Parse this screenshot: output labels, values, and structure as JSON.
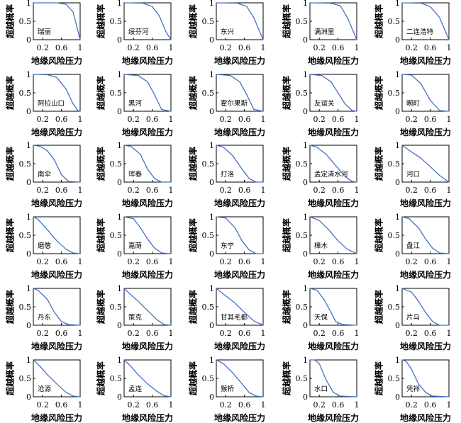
{
  "figure": {
    "xlabel": "地缘风险压力",
    "ylabel": "超越概率",
    "series_color": "#4472c4"
  },
  "chart_data": [
    {
      "type": "line",
      "title": "瑞丽",
      "xlabel": "地缘风险压力",
      "ylabel": "超越概率",
      "xlim": [
        0,
        1.0
      ],
      "ylim": [
        0,
        1.0
      ],
      "xticks": [
        0.2,
        0.6,
        1.0
      ],
      "yticks": [
        0,
        0.5,
        1.0
      ],
      "series": [
        {
          "x": [
            0,
            0.5,
            0.7,
            0.85,
            1.0
          ],
          "y": [
            1.0,
            1.0,
            0.96,
            0.75,
            0.0
          ]
        }
      ]
    },
    {
      "type": "line",
      "title": "绥芬河",
      "xlabel": "地缘风险压力",
      "ylabel": "超越概率",
      "xlim": [
        0,
        1.0
      ],
      "ylim": [
        0,
        1.0
      ],
      "xticks": [
        0.2,
        0.6,
        1.0
      ],
      "yticks": [
        0,
        0.5,
        1.0
      ],
      "series": [
        {
          "x": [
            0,
            0.4,
            0.6,
            0.75,
            0.9,
            1.0
          ],
          "y": [
            1.0,
            0.99,
            0.9,
            0.65,
            0.2,
            0.0
          ]
        }
      ]
    },
    {
      "type": "line",
      "title": "东兴",
      "xlabel": "地缘风险压力",
      "ylabel": "超越概率",
      "xlim": [
        0,
        1.0
      ],
      "ylim": [
        0,
        1.0
      ],
      "xticks": [
        0.2,
        0.6,
        1.0
      ],
      "yticks": [
        0,
        0.5,
        1.0
      ],
      "series": [
        {
          "x": [
            0,
            0.45,
            0.65,
            0.8,
            1.0
          ],
          "y": [
            1.0,
            0.99,
            0.9,
            0.6,
            0.0
          ]
        }
      ]
    },
    {
      "type": "line",
      "title": "满洲里",
      "xlabel": "地缘风险压力",
      "ylabel": "超越概率",
      "xlim": [
        0,
        1.0
      ],
      "ylim": [
        0,
        1.0
      ],
      "xticks": [
        0.2,
        0.6,
        1.0
      ],
      "yticks": [
        0,
        0.5,
        1.0
      ],
      "series": [
        {
          "x": [
            0,
            0.45,
            0.65,
            0.8,
            1.0
          ],
          "y": [
            1.0,
            0.99,
            0.92,
            0.6,
            0.0
          ]
        }
      ]
    },
    {
      "type": "line",
      "title": "二连浩特",
      "xlabel": "地缘风险压力",
      "ylabel": "超越概率",
      "xlim": [
        0,
        1.0
      ],
      "ylim": [
        0,
        1.0
      ],
      "xticks": [
        0.2,
        0.6,
        1.0
      ],
      "yticks": [
        0,
        0.5,
        1.0
      ],
      "series": [
        {
          "x": [
            0,
            0.4,
            0.6,
            0.8,
            1.0
          ],
          "y": [
            1.0,
            0.99,
            0.9,
            0.6,
            0.0
          ]
        }
      ]
    },
    {
      "type": "line",
      "title": "阿拉山口",
      "xlabel": "地缘风险压力",
      "ylabel": "超越概率",
      "xlim": [
        0,
        1.0
      ],
      "ylim": [
        0,
        1.0
      ],
      "xticks": [
        0.2,
        0.6,
        1.0
      ],
      "yticks": [
        0,
        0.5,
        1.0
      ],
      "series": [
        {
          "x": [
            0,
            0.3,
            0.5,
            0.7,
            0.85,
            0.95,
            1.0
          ],
          "y": [
            1.0,
            0.99,
            0.92,
            0.6,
            0.2,
            0.02,
            0.0
          ]
        }
      ]
    },
    {
      "type": "line",
      "title": "黑河",
      "xlabel": "地缘风险压力",
      "ylabel": "超越概率",
      "xlim": [
        0,
        1.0
      ],
      "ylim": [
        0,
        1.0
      ],
      "xticks": [
        0.2,
        0.6,
        1.0
      ],
      "yticks": [
        0,
        0.5,
        1.0
      ],
      "series": [
        {
          "x": [
            0,
            0.3,
            0.5,
            0.65,
            0.8,
            1.0
          ],
          "y": [
            1.0,
            0.97,
            0.8,
            0.45,
            0.05,
            0.0
          ]
        }
      ]
    },
    {
      "type": "line",
      "title": "霍尔果斯",
      "xlabel": "地缘风险压力",
      "ylabel": "超越概率",
      "xlim": [
        0,
        1.0
      ],
      "ylim": [
        0,
        1.0
      ],
      "xticks": [
        0.2,
        0.6,
        1.0
      ],
      "yticks": [
        0,
        0.5,
        1.0
      ],
      "series": [
        {
          "x": [
            0,
            0.3,
            0.5,
            0.65,
            0.8,
            1.0
          ],
          "y": [
            1.0,
            0.97,
            0.8,
            0.45,
            0.05,
            0.0
          ]
        }
      ]
    },
    {
      "type": "line",
      "title": "友谊关",
      "xlabel": "地缘风险压力",
      "ylabel": "超越概率",
      "xlim": [
        0,
        1.0
      ],
      "ylim": [
        0,
        1.0
      ],
      "xticks": [
        0.2,
        0.6,
        1.0
      ],
      "yticks": [
        0,
        0.5,
        1.0
      ],
      "series": [
        {
          "x": [
            0,
            0.25,
            0.45,
            0.6,
            0.75,
            0.9,
            1.0
          ],
          "y": [
            1.0,
            0.97,
            0.8,
            0.5,
            0.2,
            0.02,
            0.0
          ]
        }
      ]
    },
    {
      "type": "line",
      "title": "畹町",
      "xlabel": "地缘风险压力",
      "ylabel": "超越概率",
      "xlim": [
        0,
        1.0
      ],
      "ylim": [
        0,
        1.0
      ],
      "xticks": [
        0.2,
        0.6,
        1.0
      ],
      "yticks": [
        0,
        0.5,
        1.0
      ],
      "series": [
        {
          "x": [
            0,
            0.2,
            0.4,
            0.6,
            0.8,
            1.0
          ],
          "y": [
            1.0,
            0.98,
            0.75,
            0.3,
            0.02,
            0.0
          ]
        }
      ]
    },
    {
      "type": "line",
      "title": "南伞",
      "xlabel": "地缘风险压力",
      "ylabel": "超越概率",
      "xlim": [
        0,
        1.0
      ],
      "ylim": [
        0,
        1.0
      ],
      "xticks": [
        0.2,
        0.6,
        1.0
      ],
      "yticks": [
        0,
        0.5,
        1.0
      ],
      "series": [
        {
          "x": [
            0,
            0.15,
            0.3,
            0.45,
            0.6,
            0.75,
            1.0
          ],
          "y": [
            1.0,
            0.97,
            0.85,
            0.6,
            0.2,
            0.02,
            0.0
          ]
        }
      ]
    },
    {
      "type": "line",
      "title": "珲春",
      "xlabel": "地缘风险压力",
      "ylabel": "超越概率",
      "xlim": [
        0,
        1.0
      ],
      "ylim": [
        0,
        1.0
      ],
      "xticks": [
        0.2,
        0.6,
        1.0
      ],
      "yticks": [
        0,
        0.5,
        1.0
      ],
      "series": [
        {
          "x": [
            0,
            0.15,
            0.35,
            0.5,
            0.65,
            0.8,
            1.0
          ],
          "y": [
            1.0,
            0.97,
            0.75,
            0.35,
            0.1,
            0.0,
            0.0
          ]
        }
      ]
    },
    {
      "type": "line",
      "title": "打洛",
      "xlabel": "地缘风险压力",
      "ylabel": "超越概率",
      "xlim": [
        0,
        1.0
      ],
      "ylim": [
        0,
        1.0
      ],
      "xticks": [
        0.2,
        0.6,
        1.0
      ],
      "yticks": [
        0,
        0.5,
        1.0
      ],
      "series": [
        {
          "x": [
            0,
            0.15,
            0.35,
            0.55,
            0.7,
            0.85,
            1.0
          ],
          "y": [
            1.0,
            0.95,
            0.72,
            0.35,
            0.1,
            0.0,
            0.0
          ]
        }
      ]
    },
    {
      "type": "line",
      "title": "孟定清水河",
      "xlabel": "地缘风险压力",
      "ylabel": "超越概率",
      "xlim": [
        0,
        1.0
      ],
      "ylim": [
        0,
        1.0
      ],
      "xticks": [
        0.2,
        0.6,
        1.0
      ],
      "yticks": [
        0,
        0.5,
        1.0
      ],
      "series": [
        {
          "x": [
            0,
            0.15,
            0.35,
            0.55,
            0.75,
            0.9,
            1.0
          ],
          "y": [
            1.0,
            0.95,
            0.75,
            0.45,
            0.15,
            0.02,
            0.0
          ]
        }
      ]
    },
    {
      "type": "line",
      "title": "河口",
      "xlabel": "地缘风险压力",
      "ylabel": "超越概率",
      "xlim": [
        0,
        1.0
      ],
      "ylim": [
        0,
        1.0
      ],
      "xticks": [
        0.2,
        0.6,
        1.0
      ],
      "yticks": [
        0,
        0.5,
        1.0
      ],
      "series": [
        {
          "x": [
            0,
            0.2,
            0.4,
            0.6,
            0.8,
            1.0
          ],
          "y": [
            1.0,
            0.82,
            0.65,
            0.42,
            0.18,
            0.0
          ]
        }
      ]
    },
    {
      "type": "line",
      "title": "磨憨",
      "xlabel": "地缘风险压力",
      "ylabel": "超越概率",
      "xlim": [
        0,
        1.0
      ],
      "ylim": [
        0,
        1.0
      ],
      "xticks": [
        0.2,
        0.6,
        1.0
      ],
      "yticks": [
        0,
        0.5,
        1.0
      ],
      "series": [
        {
          "x": [
            0,
            0.1,
            0.3,
            0.5,
            0.7,
            0.85,
            1.0
          ],
          "y": [
            1.0,
            0.93,
            0.65,
            0.35,
            0.12,
            0.02,
            0.0
          ]
        }
      ]
    },
    {
      "type": "line",
      "title": "嘉荫",
      "xlabel": "地缘风险压力",
      "ylabel": "超越概率",
      "xlim": [
        0,
        1.0
      ],
      "ylim": [
        0,
        1.0
      ],
      "xticks": [
        0.2,
        0.6,
        1.0
      ],
      "yticks": [
        0,
        0.5,
        1.0
      ],
      "series": [
        {
          "x": [
            0,
            0.2,
            0.35,
            0.5,
            0.65,
            0.8,
            1.0
          ],
          "y": [
            1.0,
            0.95,
            0.7,
            0.4,
            0.15,
            0.02,
            0.0
          ]
        }
      ]
    },
    {
      "type": "line",
      "title": "东宁",
      "xlabel": "地缘风险压力",
      "ylabel": "超越概率",
      "xlim": [
        0,
        1.0
      ],
      "ylim": [
        0,
        1.0
      ],
      "xticks": [
        0.2,
        0.6,
        1.0
      ],
      "yticks": [
        0,
        0.5,
        1.0
      ],
      "series": [
        {
          "x": [
            0,
            0.2,
            0.4,
            0.55,
            0.7,
            0.85,
            1.0
          ],
          "y": [
            1.0,
            0.97,
            0.7,
            0.35,
            0.1,
            0.0,
            0.0
          ]
        }
      ]
    },
    {
      "type": "line",
      "title": "樟木",
      "xlabel": "地缘风险压力",
      "ylabel": "超越概率",
      "xlim": [
        0,
        1.0
      ],
      "ylim": [
        0,
        1.0
      ],
      "xticks": [
        0.2,
        0.6,
        1.0
      ],
      "yticks": [
        0,
        0.5,
        1.0
      ],
      "series": [
        {
          "x": [
            0,
            0.2,
            0.4,
            0.6,
            0.8,
            1.0
          ],
          "y": [
            1.0,
            0.9,
            0.65,
            0.35,
            0.12,
            0.0
          ]
        }
      ]
    },
    {
      "type": "line",
      "title": "盘江",
      "xlabel": "地缘风险压力",
      "ylabel": "超越概率",
      "xlim": [
        0,
        1.0
      ],
      "ylim": [
        0,
        1.0
      ],
      "xticks": [
        0.2,
        0.6,
        1.0
      ],
      "yticks": [
        0,
        0.5,
        1.0
      ],
      "series": [
        {
          "x": [
            0,
            0.15,
            0.35,
            0.5,
            0.65,
            0.8,
            1.0
          ],
          "y": [
            1.0,
            0.95,
            0.7,
            0.4,
            0.15,
            0.02,
            0.0
          ]
        }
      ]
    },
    {
      "type": "line",
      "title": "丹东",
      "xlabel": "地缘风险压力",
      "ylabel": "超越概率",
      "xlim": [
        0,
        1.0
      ],
      "ylim": [
        0,
        1.0
      ],
      "xticks": [
        0.2,
        0.6,
        1.0
      ],
      "yticks": [
        0,
        0.5,
        1.0
      ],
      "series": [
        {
          "x": [
            0,
            0.1,
            0.3,
            0.45,
            0.6,
            0.75,
            1.0
          ],
          "y": [
            1.0,
            0.95,
            0.7,
            0.35,
            0.1,
            0.02,
            0.0
          ]
        }
      ]
    },
    {
      "type": "line",
      "title": "策克",
      "xlabel": "地缘风险压力",
      "ylabel": "超越概率",
      "xlim": [
        0,
        1.0
      ],
      "ylim": [
        0,
        1.0
      ],
      "xticks": [
        0.2,
        0.6,
        1.0
      ],
      "yticks": [
        0,
        0.5,
        1.0
      ],
      "series": [
        {
          "x": [
            0,
            0.15,
            0.3,
            0.5,
            0.7,
            0.85,
            1.0
          ],
          "y": [
            1.0,
            0.82,
            0.65,
            0.4,
            0.15,
            0.02,
            0.0
          ]
        }
      ]
    },
    {
      "type": "line",
      "title": "甘其毛都",
      "xlabel": "地缘风险压力",
      "ylabel": "超越概率",
      "xlim": [
        0,
        1.0
      ],
      "ylim": [
        0,
        1.0
      ],
      "xticks": [
        0.2,
        0.6,
        1.0
      ],
      "yticks": [
        0,
        0.5,
        1.0
      ],
      "series": [
        {
          "x": [
            0,
            0.2,
            0.4,
            0.6,
            0.8,
            1.0
          ],
          "y": [
            1.0,
            0.8,
            0.6,
            0.35,
            0.12,
            0.0
          ]
        }
      ]
    },
    {
      "type": "line",
      "title": "天保",
      "xlabel": "地缘风险压力",
      "ylabel": "超越概率",
      "xlim": [
        0,
        1.0
      ],
      "ylim": [
        0,
        1.0
      ],
      "xticks": [
        0.2,
        0.6,
        1.0
      ],
      "yticks": [
        0,
        0.5,
        1.0
      ],
      "series": [
        {
          "x": [
            0,
            0.15,
            0.3,
            0.45,
            0.55,
            0.7,
            1.0
          ],
          "y": [
            1.0,
            0.95,
            0.7,
            0.35,
            0.1,
            0.02,
            0.0
          ]
        }
      ]
    },
    {
      "type": "line",
      "title": "片马",
      "xlabel": "地缘风险压力",
      "ylabel": "超越概率",
      "xlim": [
        0,
        1.0
      ],
      "ylim": [
        0,
        1.0
      ],
      "xticks": [
        0.2,
        0.6,
        1.0
      ],
      "yticks": [
        0,
        0.5,
        1.0
      ],
      "series": [
        {
          "x": [
            0,
            0.2,
            0.35,
            0.5,
            0.65,
            0.8,
            1.0
          ],
          "y": [
            1.0,
            0.9,
            0.65,
            0.35,
            0.1,
            0.0,
            0.0
          ]
        }
      ]
    },
    {
      "type": "line",
      "title": "沧源",
      "xlabel": "地缘风险压力",
      "ylabel": "超越概率",
      "xlim": [
        0,
        1.0
      ],
      "ylim": [
        0,
        1.0
      ],
      "xticks": [
        0.2,
        0.6,
        1.0
      ],
      "yticks": [
        0,
        0.5,
        1.0
      ],
      "series": [
        {
          "x": [
            0,
            0.15,
            0.3,
            0.5,
            0.7,
            0.85,
            1.0
          ],
          "y": [
            1.0,
            0.82,
            0.6,
            0.35,
            0.12,
            0.02,
            0.0
          ]
        }
      ]
    },
    {
      "type": "line",
      "title": "孟连",
      "xlabel": "地缘风险压力",
      "ylabel": "超越概率",
      "xlim": [
        0,
        1.0
      ],
      "ylim": [
        0,
        1.0
      ],
      "xticks": [
        0.2,
        0.6,
        1.0
      ],
      "yticks": [
        0,
        0.5,
        1.0
      ],
      "series": [
        {
          "x": [
            0,
            0.15,
            0.3,
            0.5,
            0.7,
            0.85,
            1.0
          ],
          "y": [
            1.0,
            0.82,
            0.6,
            0.35,
            0.15,
            0.03,
            0.0
          ]
        }
      ]
    },
    {
      "type": "line",
      "title": "猴桥",
      "xlabel": "地缘风险压力",
      "ylabel": "超越概率",
      "xlim": [
        0,
        1.0
      ],
      "ylim": [
        0,
        1.0
      ],
      "xticks": [
        0.2,
        0.6,
        1.0
      ],
      "yticks": [
        0,
        0.5,
        1.0
      ],
      "series": [
        {
          "x": [
            0,
            0.15,
            0.35,
            0.55,
            0.7,
            0.85,
            1.0
          ],
          "y": [
            1.0,
            0.9,
            0.65,
            0.35,
            0.12,
            0.02,
            0.0
          ]
        }
      ]
    },
    {
      "type": "line",
      "title": "水口",
      "xlabel": "地缘风险压力",
      "ylabel": "超越概率",
      "xlim": [
        0,
        1.0
      ],
      "ylim": [
        0,
        1.0
      ],
      "xticks": [
        0.2,
        0.6,
        1.0
      ],
      "yticks": [
        0,
        0.5,
        1.0
      ],
      "series": [
        {
          "x": [
            0,
            0.1,
            0.2,
            0.35,
            0.5,
            0.65,
            1.0
          ],
          "y": [
            1.0,
            1.0,
            0.9,
            0.45,
            0.12,
            0.02,
            0.0
          ]
        }
      ]
    },
    {
      "type": "line",
      "title": "凭祥",
      "xlabel": "地缘风险压力",
      "ylabel": "超越概率",
      "xlim": [
        0,
        1.0
      ],
      "ylim": [
        0,
        1.0
      ],
      "xticks": [
        0.2,
        0.6,
        1.0
      ],
      "yticks": [
        0,
        0.5,
        1.0
      ],
      "series": [
        {
          "x": [
            0,
            0.08,
            0.2,
            0.35,
            0.5,
            0.65,
            1.0
          ],
          "y": [
            1.0,
            0.97,
            0.75,
            0.35,
            0.12,
            0.02,
            0.0
          ]
        }
      ]
    }
  ]
}
